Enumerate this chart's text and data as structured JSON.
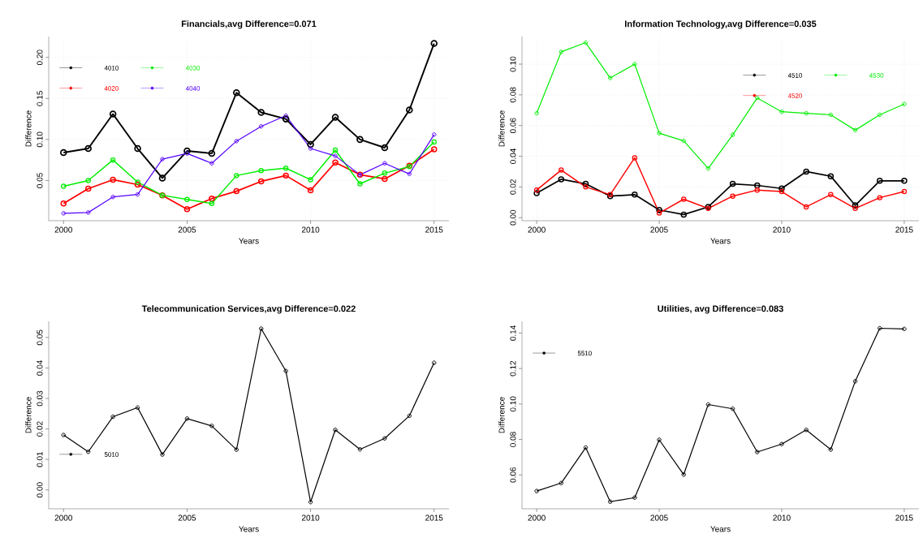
{
  "chart_data": [
    {
      "type": "line",
      "title": "Financials,avg Difference=0.071",
      "xlabel": "Years",
      "ylabel": "Difference",
      "x": [
        2000,
        2001,
        2002,
        2003,
        2004,
        2005,
        2006,
        2007,
        2008,
        2009,
        2010,
        2011,
        2012,
        2013,
        2014,
        2015
      ],
      "xlim": [
        1999.4,
        2015.6
      ],
      "xticks": [
        2000,
        2005,
        2010,
        2015
      ],
      "ylim": [
        0.001,
        0.2255
      ],
      "yticks": [
        {
          "value": 0.05,
          "label": "0.05"
        },
        {
          "value": 0.1,
          "label": "0.10"
        },
        {
          "value": 0.15,
          "label": "0.15"
        },
        {
          "value": 0.2,
          "label": "0.20"
        }
      ],
      "grid": true,
      "legend": "top left",
      "marker": "circle",
      "series": [
        {
          "name": "4010",
          "color": "#000000",
          "values": [
            0.084,
            0.089,
            0.131,
            0.089,
            0.053,
            0.086,
            0.083,
            0.157,
            0.133,
            0.125,
            0.094,
            0.127,
            0.1,
            0.09,
            0.136,
            0.217
          ]
        },
        {
          "name": "4020",
          "color": "#ff0000",
          "values": [
            0.022,
            0.04,
            0.051,
            0.045,
            0.032,
            0.015,
            0.028,
            0.037,
            0.049,
            0.056,
            0.038,
            0.072,
            0.057,
            0.052,
            0.068,
            0.088
          ]
        },
        {
          "name": "4030",
          "color": "#00ee00",
          "values": [
            0.043,
            0.05,
            0.075,
            0.048,
            0.032,
            0.027,
            0.022,
            0.056,
            0.062,
            0.065,
            0.051,
            0.087,
            0.046,
            0.059,
            0.067,
            0.097
          ]
        },
        {
          "name": "4040",
          "color": "#5500ff",
          "values": [
            0.01,
            0.011,
            0.03,
            0.033,
            0.076,
            0.083,
            0.071,
            0.098,
            0.116,
            0.129,
            0.089,
            0.08,
            0.057,
            0.071,
            0.058,
            0.106
          ]
        }
      ]
    },
    {
      "type": "line",
      "title": "Information Technology,avg Difference=0.035",
      "xlabel": "Years",
      "ylabel": "Difference",
      "x": [
        2000,
        2001,
        2002,
        2003,
        2004,
        2005,
        2006,
        2007,
        2008,
        2009,
        2010,
        2011,
        2012,
        2013,
        2014,
        2015
      ],
      "xlim": [
        1999.4,
        2015.6
      ],
      "xticks": [
        2000,
        2005,
        2010,
        2015
      ],
      "ylim": [
        -0.002,
        0.118
      ],
      "yticks": [
        {
          "value": 0,
          "label": "0.00"
        },
        {
          "value": 0.02,
          "label": "0.02"
        },
        {
          "value": 0.04,
          "label": "0.04"
        },
        {
          "value": 0.06,
          "label": "0.06"
        },
        {
          "value": 0.08,
          "label": "0.08"
        },
        {
          "value": 0.1,
          "label": "0.10"
        }
      ],
      "grid": true,
      "legend": "top right",
      "marker": "circle",
      "series": [
        {
          "name": "4510",
          "color": "#000000",
          "values": [
            0.016,
            0.025,
            0.022,
            0.014,
            0.015,
            0.005,
            0.002,
            0.007,
            0.022,
            0.021,
            0.019,
            0.03,
            0.027,
            0.008,
            0.024,
            0.024
          ]
        },
        {
          "name": "4520",
          "color": "#ff0000",
          "values": [
            0.018,
            0.031,
            0.02,
            0.015,
            0.039,
            0.003,
            0.012,
            0.006,
            0.014,
            0.018,
            0.017,
            0.007,
            0.015,
            0.006,
            0.013,
            0.017
          ]
        },
        {
          "name": "4530",
          "color": "#00ee00",
          "values": [
            0.068,
            0.108,
            0.114,
            0.091,
            0.1,
            0.055,
            0.05,
            0.032,
            0.054,
            0.078,
            0.069,
            0.068,
            0.067,
            0.057,
            0.067,
            0.074
          ]
        }
      ]
    },
    {
      "type": "line",
      "title": "Telecommunication Services,avg Difference=0.022",
      "xlabel": "Years",
      "ylabel": "Difference",
      "x": [
        2000,
        2001,
        2002,
        2003,
        2004,
        2005,
        2006,
        2007,
        2008,
        2009,
        2010,
        2011,
        2012,
        2013,
        2014,
        2015
      ],
      "xlim": [
        1999.4,
        2015.6
      ],
      "xticks": [
        2000,
        2005,
        2010,
        2015
      ],
      "ylim": [
        -0.0062,
        0.0553
      ],
      "yticks": [
        {
          "value": 0,
          "label": "0.00"
        },
        {
          "value": 0.01,
          "label": "0.01"
        },
        {
          "value": 0.02,
          "label": "0.02"
        },
        {
          "value": 0.03,
          "label": "0.03"
        },
        {
          "value": 0.04,
          "label": "0.04"
        },
        {
          "value": 0.05,
          "label": "0.05"
        }
      ],
      "legend": "left",
      "marker": "circle",
      "series": [
        {
          "name": "5010",
          "color": "#000000",
          "values": [
            0.018,
            0.0125,
            0.024,
            0.027,
            0.0116,
            0.0234,
            0.021,
            0.0132,
            0.0529,
            0.039,
            -0.004,
            0.0197,
            0.0133,
            0.0169,
            0.0243,
            0.0417
          ]
        }
      ]
    },
    {
      "type": "line",
      "title": "Utilities, avg Difference=0.083",
      "xlabel": "Years",
      "ylabel": "Difference",
      "x": [
        2000,
        2001,
        2002,
        2003,
        2004,
        2005,
        2006,
        2007,
        2008,
        2009,
        2010,
        2011,
        2012,
        2013,
        2014,
        2015
      ],
      "xlim": [
        1999.4,
        2015.6
      ],
      "xticks": [
        2000,
        2005,
        2010,
        2015
      ],
      "ylim": [
        0.0409,
        0.1466
      ],
      "yticks": [
        {
          "value": 0.06,
          "label": "0.06"
        },
        {
          "value": 0.08,
          "label": "0.08"
        },
        {
          "value": 0.1,
          "label": "0.10"
        },
        {
          "value": 0.12,
          "label": "0.12"
        },
        {
          "value": 0.14,
          "label": "0.14"
        }
      ],
      "legend": "top left",
      "marker": "circle",
      "series": [
        {
          "name": "5510",
          "color": "#000000",
          "values": [
            0.0509,
            0.0554,
            0.0754,
            0.0449,
            0.0472,
            0.0798,
            0.0602,
            0.0997,
            0.0973,
            0.0729,
            0.0774,
            0.0854,
            0.0743,
            0.1128,
            0.1427,
            0.1423
          ]
        }
      ]
    }
  ]
}
